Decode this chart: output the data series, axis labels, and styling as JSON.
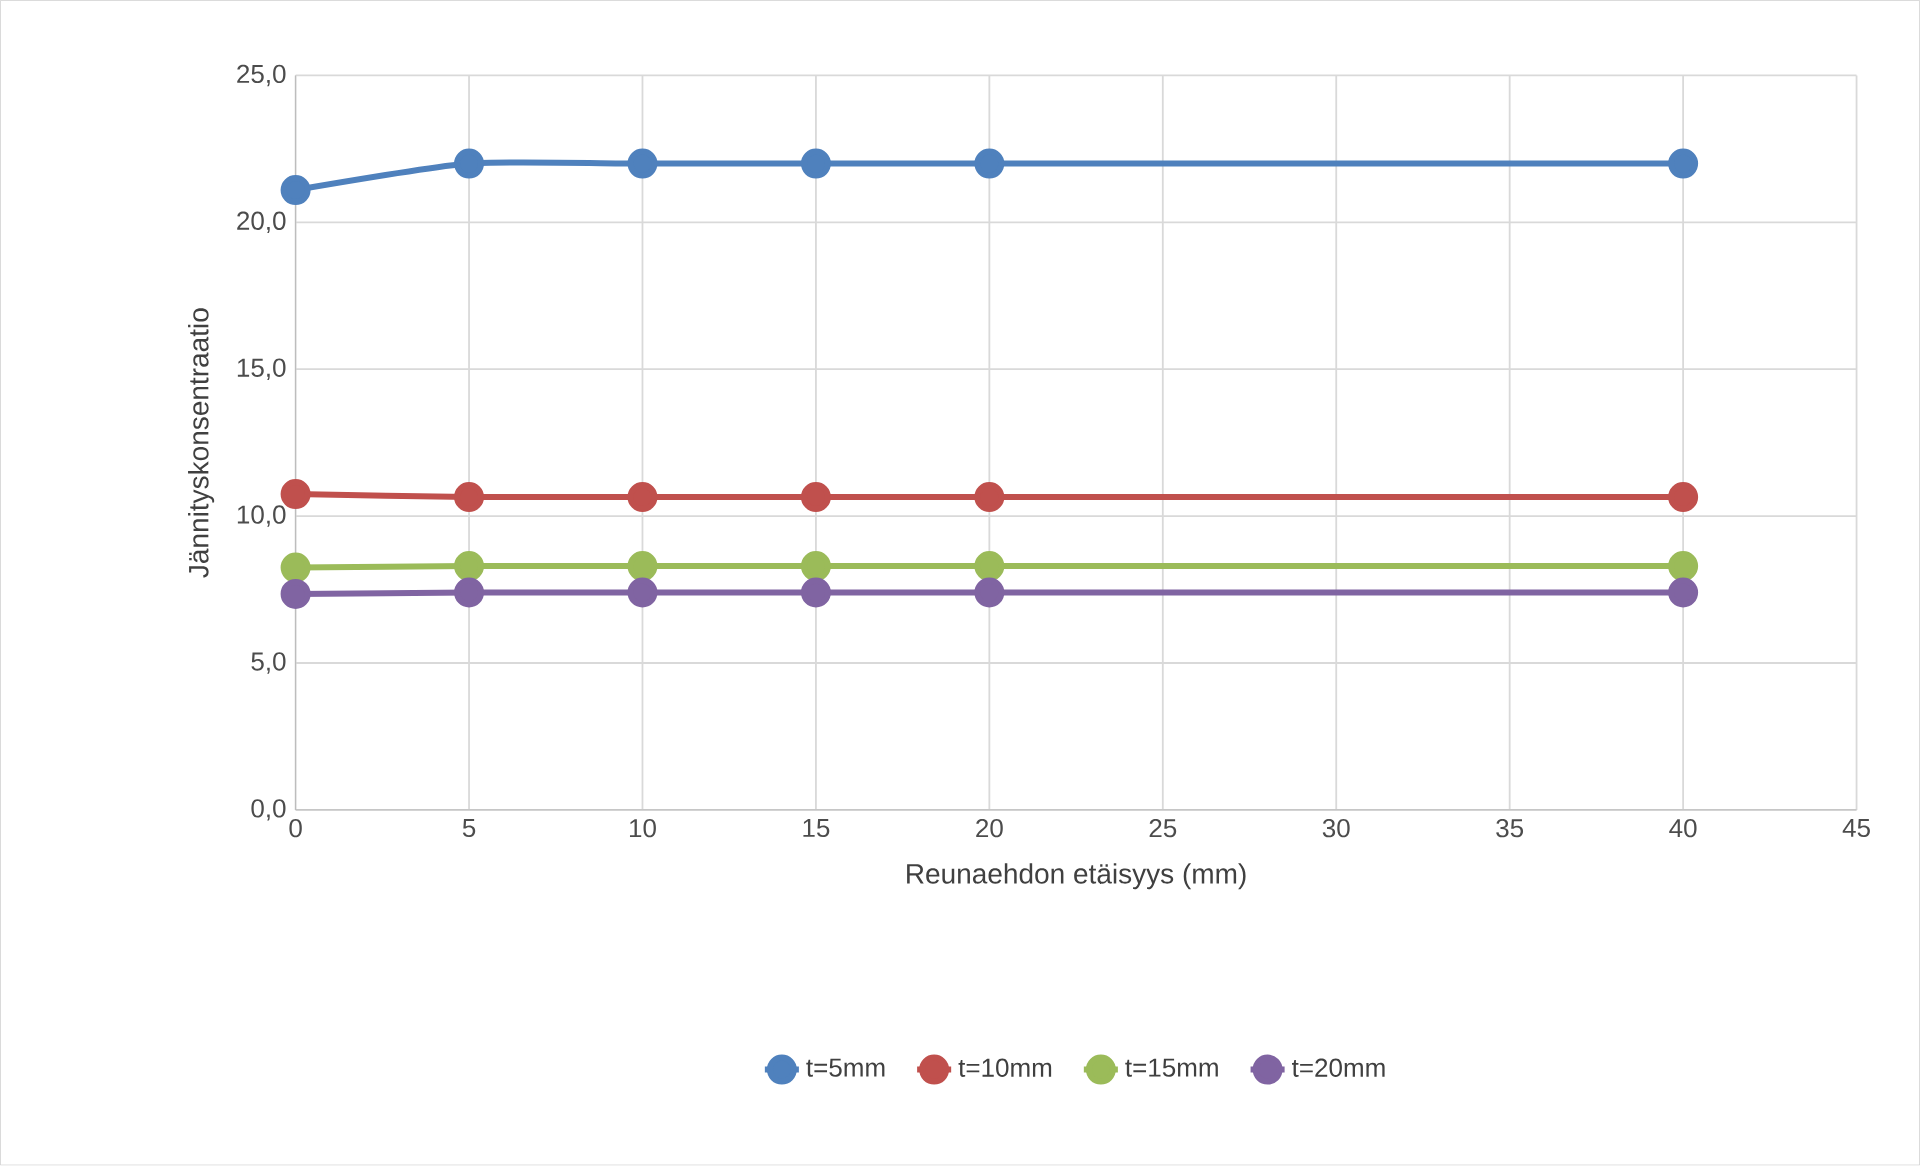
{
  "chart_data": {
    "type": "line",
    "xlabel": "Reunaehdon etäisyys (mm)",
    "ylabel": "Jännityskonsentraatio",
    "x": [
      0,
      5,
      10,
      15,
      20,
      40
    ],
    "series": [
      {
        "name": "t=5mm",
        "color": "#4f81bd",
        "values": [
          21.1,
          22.0,
          22.0,
          22.0,
          22.0,
          22.0
        ]
      },
      {
        "name": "t=10mm",
        "color": "#c0504d",
        "values": [
          10.75,
          10.65,
          10.65,
          10.65,
          10.65,
          10.65
        ]
      },
      {
        "name": "t=15mm",
        "color": "#9bbb59",
        "values": [
          8.25,
          8.3,
          8.3,
          8.3,
          8.3,
          8.3
        ]
      },
      {
        "name": "t=20mm",
        "color": "#8064a2",
        "values": [
          7.35,
          7.4,
          7.4,
          7.4,
          7.4,
          7.4
        ]
      }
    ],
    "xlim": [
      0,
      45
    ],
    "xticks": [
      0,
      5,
      10,
      15,
      20,
      25,
      30,
      35,
      40,
      45
    ],
    "ylim": [
      0,
      25
    ],
    "yticks": [
      {
        "value": 0,
        "label": "0,0"
      },
      {
        "value": 5,
        "label": "5,0"
      },
      {
        "value": 10,
        "label": "10,0"
      },
      {
        "value": 15,
        "label": "15,0"
      },
      {
        "value": 20,
        "label": "20,0"
      },
      {
        "value": 25,
        "label": "25,0"
      }
    ],
    "grid": true,
    "legend": "bottom",
    "marker": "circle",
    "line_style": "solid"
  }
}
